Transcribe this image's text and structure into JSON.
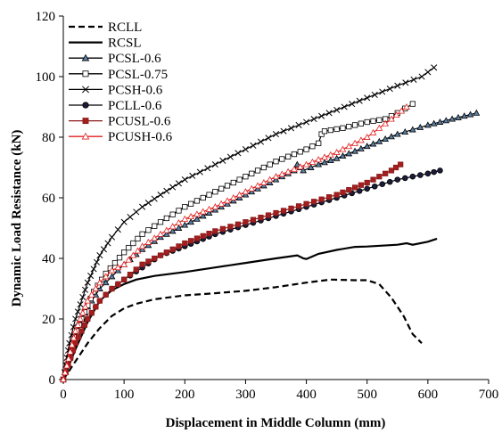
{
  "chart_data": {
    "type": "line",
    "title": "",
    "xlabel": "Displacement  in Middle Column (mm)",
    "ylabel": "Dynamic Load Resistance (kN)",
    "xlim": [
      0,
      700
    ],
    "ylim": [
      0,
      120
    ],
    "x_ticks": [
      0,
      100,
      200,
      300,
      400,
      500,
      600,
      700
    ],
    "x_tick_labels": [
      "0",
      "100",
      "200",
      "300",
      "400",
      "500",
      "600",
      "700"
    ],
    "y_ticks": [
      0,
      20,
      40,
      60,
      80,
      100,
      120
    ],
    "y_tick_labels": [
      "0",
      "20",
      "40",
      "60",
      "80",
      "100",
      "120"
    ],
    "grid": false,
    "legend_position": "top-left",
    "series": [
      {
        "name": "RCLL",
        "color": "#000000",
        "dash": "dashed",
        "marker": "none",
        "points": [
          [
            0,
            0
          ],
          [
            20,
            6
          ],
          [
            40,
            12
          ],
          [
            60,
            17
          ],
          [
            80,
            21
          ],
          [
            100,
            23.5
          ],
          [
            120,
            25
          ],
          [
            150,
            26.5
          ],
          [
            200,
            27.8
          ],
          [
            250,
            28.5
          ],
          [
            300,
            29.3
          ],
          [
            350,
            30.5
          ],
          [
            400,
            32
          ],
          [
            440,
            33
          ],
          [
            480,
            32.8
          ],
          [
            500,
            32.8
          ],
          [
            520,
            31.5
          ],
          [
            540,
            27
          ],
          [
            560,
            21
          ],
          [
            575,
            15
          ],
          [
            590,
            12
          ]
        ]
      },
      {
        "name": "RCSL",
        "color": "#000000",
        "dash": "solid",
        "marker": "none",
        "points": [
          [
            0,
            0
          ],
          [
            20,
            10
          ],
          [
            40,
            19
          ],
          [
            60,
            26
          ],
          [
            80,
            29.5
          ],
          [
            100,
            31.5
          ],
          [
            120,
            33
          ],
          [
            150,
            34.2
          ],
          [
            200,
            35.5
          ],
          [
            250,
            37
          ],
          [
            300,
            38.5
          ],
          [
            350,
            40
          ],
          [
            385,
            41
          ],
          [
            395,
            40
          ],
          [
            400,
            39.8
          ],
          [
            420,
            41.5
          ],
          [
            450,
            42.8
          ],
          [
            480,
            43.8
          ],
          [
            500,
            43.9
          ],
          [
            550,
            44.5
          ],
          [
            565,
            45
          ],
          [
            575,
            44.5
          ],
          [
            600,
            45.5
          ],
          [
            615,
            46.5
          ]
        ]
      },
      {
        "name": "PCSL-0.6",
        "color": "#000000",
        "fill": "#5b7fa6",
        "dash": "solid",
        "marker": "triangle",
        "points": [
          [
            0,
            0
          ],
          [
            20,
            14
          ],
          [
            40,
            24
          ],
          [
            60,
            30
          ],
          [
            80,
            34
          ],
          [
            100,
            38
          ],
          [
            130,
            43
          ],
          [
            160,
            47
          ],
          [
            200,
            51
          ],
          [
            250,
            56
          ],
          [
            300,
            61
          ],
          [
            350,
            66
          ],
          [
            380,
            69
          ],
          [
            385,
            71
          ],
          [
            390,
            70
          ],
          [
            395,
            69
          ],
          [
            420,
            71
          ],
          [
            450,
            73
          ],
          [
            500,
            77
          ],
          [
            550,
            81
          ],
          [
            600,
            84
          ],
          [
            640,
            86
          ],
          [
            680,
            88
          ]
        ]
      },
      {
        "name": "PCSL-0.75",
        "color": "#000000",
        "fill": "#ffffff",
        "dash": "solid",
        "marker": "square",
        "points": [
          [
            0,
            0
          ],
          [
            15,
            12
          ],
          [
            30,
            20
          ],
          [
            50,
            29
          ],
          [
            70,
            35
          ],
          [
            100,
            42
          ],
          [
            130,
            48
          ],
          [
            160,
            52
          ],
          [
            200,
            57
          ],
          [
            250,
            62
          ],
          [
            300,
            67
          ],
          [
            350,
            72
          ],
          [
            400,
            76
          ],
          [
            410,
            77
          ],
          [
            420,
            78
          ],
          [
            425,
            81
          ],
          [
            430,
            82
          ],
          [
            460,
            83
          ],
          [
            500,
            85
          ],
          [
            530,
            86
          ],
          [
            550,
            88
          ],
          [
            575,
            91
          ]
        ]
      },
      {
        "name": "PCSH-0.6",
        "color": "#000000",
        "dash": "solid",
        "marker": "x",
        "points": [
          [
            0,
            0
          ],
          [
            10,
            12
          ],
          [
            20,
            20
          ],
          [
            40,
            32
          ],
          [
            60,
            41
          ],
          [
            80,
            47
          ],
          [
            100,
            52
          ],
          [
            130,
            57
          ],
          [
            160,
            61
          ],
          [
            200,
            66
          ],
          [
            250,
            71
          ],
          [
            300,
            76
          ],
          [
            350,
            81
          ],
          [
            400,
            85
          ],
          [
            450,
            89
          ],
          [
            500,
            93
          ],
          [
            550,
            97
          ],
          [
            590,
            100
          ],
          [
            610,
            103
          ]
        ]
      },
      {
        "name": "PCLL-0.6",
        "color": "#000000",
        "fill": "#1c1c3a",
        "dash": "solid",
        "marker": "circle",
        "points": [
          [
            0,
            0
          ],
          [
            20,
            12
          ],
          [
            40,
            20
          ],
          [
            60,
            26
          ],
          [
            80,
            30
          ],
          [
            100,
            33
          ],
          [
            130,
            37
          ],
          [
            160,
            41
          ],
          [
            200,
            44
          ],
          [
            250,
            48
          ],
          [
            300,
            51
          ],
          [
            350,
            54
          ],
          [
            400,
            57
          ],
          [
            450,
            60
          ],
          [
            500,
            63
          ],
          [
            550,
            66
          ],
          [
            600,
            68
          ],
          [
            620,
            69
          ]
        ]
      },
      {
        "name": "PCUSL-0.6",
        "color": "#8b1a1a",
        "fill": "#a31f1f",
        "dash": "solid",
        "marker": "square",
        "points": [
          [
            0,
            0
          ],
          [
            20,
            12
          ],
          [
            40,
            20
          ],
          [
            60,
            26
          ],
          [
            80,
            30
          ],
          [
            100,
            33
          ],
          [
            130,
            38
          ],
          [
            160,
            41
          ],
          [
            200,
            45
          ],
          [
            250,
            49
          ],
          [
            300,
            52
          ],
          [
            350,
            55
          ],
          [
            400,
            58
          ],
          [
            450,
            61
          ],
          [
            500,
            65
          ],
          [
            540,
            69
          ],
          [
            555,
            71
          ]
        ]
      },
      {
        "name": "PCUSH-0.6",
        "color": "#e02020",
        "fill": "#ffffff",
        "dash": "solid",
        "marker": "triangle",
        "points": [
          [
            0,
            0
          ],
          [
            20,
            16
          ],
          [
            40,
            26
          ],
          [
            60,
            32
          ],
          [
            80,
            36
          ],
          [
            100,
            38
          ],
          [
            130,
            44
          ],
          [
            160,
            48
          ],
          [
            200,
            53
          ],
          [
            250,
            57
          ],
          [
            300,
            62
          ],
          [
            350,
            67
          ],
          [
            400,
            71
          ],
          [
            450,
            75
          ],
          [
            500,
            80
          ],
          [
            540,
            86
          ],
          [
            565,
            90
          ]
        ]
      }
    ]
  }
}
